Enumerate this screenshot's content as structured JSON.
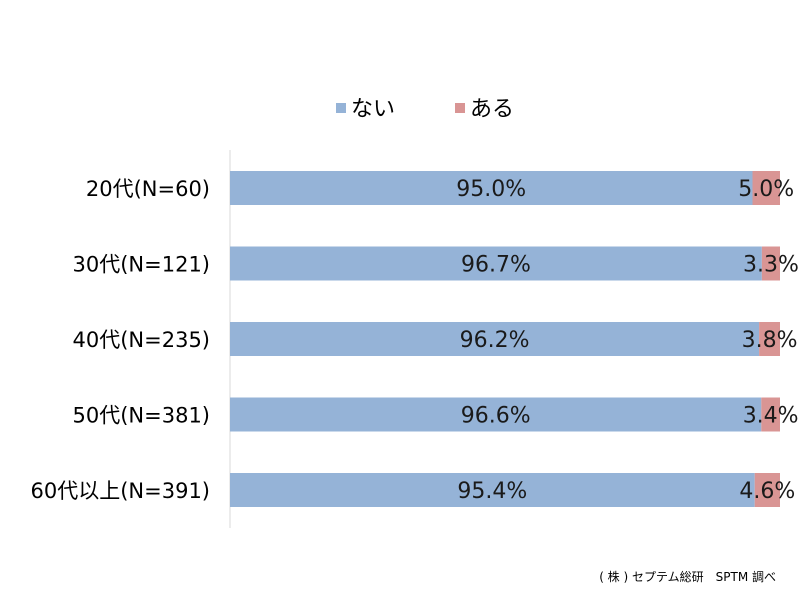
{
  "chart_data": {
    "type": "bar",
    "orientation": "horizontal",
    "stacked": true,
    "percent_stacked": true,
    "categories": [
      "20代(N=60)",
      "30代(N=121)",
      "40代(N=235)",
      "50代(N=381)",
      "60代以上(N=391)"
    ],
    "series": [
      {
        "name": "ない",
        "color": "#95b3d7",
        "values": [
          95.0,
          96.7,
          96.2,
          96.6,
          95.4
        ],
        "labels": [
          "95.0%",
          "96.7%",
          "96.2%",
          "96.6%",
          "95.4%"
        ]
      },
      {
        "name": "ある",
        "color": "#d99594",
        "values": [
          5.0,
          3.3,
          3.8,
          3.4,
          4.6
        ],
        "labels": [
          "5.0%",
          "3.3%",
          "3.8%",
          "3.4%",
          "4.6%"
        ]
      }
    ],
    "xlim": [
      0,
      100
    ],
    "legend_position": "top",
    "grid": false
  },
  "footnote": "( 株 ) セプテム総研　SPTM 調べ"
}
